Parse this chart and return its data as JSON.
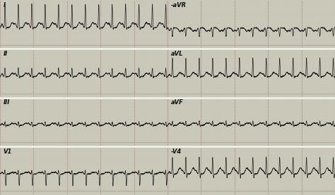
{
  "bg_color": "#c8c8b8",
  "grid_major_color": "#b8a8a0",
  "grid_minor_color": "#d0c8c0",
  "line_color": "#222222",
  "fig_width": 4.74,
  "fig_height": 2.77,
  "dpi": 100,
  "rows": 4,
  "row_labels_left": [
    "I",
    "II",
    "III",
    "V1"
  ],
  "row_labels_right": [
    "-aVR",
    "aVL",
    "aVF",
    "-V4"
  ],
  "label_fontsize": 6,
  "strip_bg": "#ccccbc",
  "separator_color": "#f0f0e8",
  "rate": 150
}
